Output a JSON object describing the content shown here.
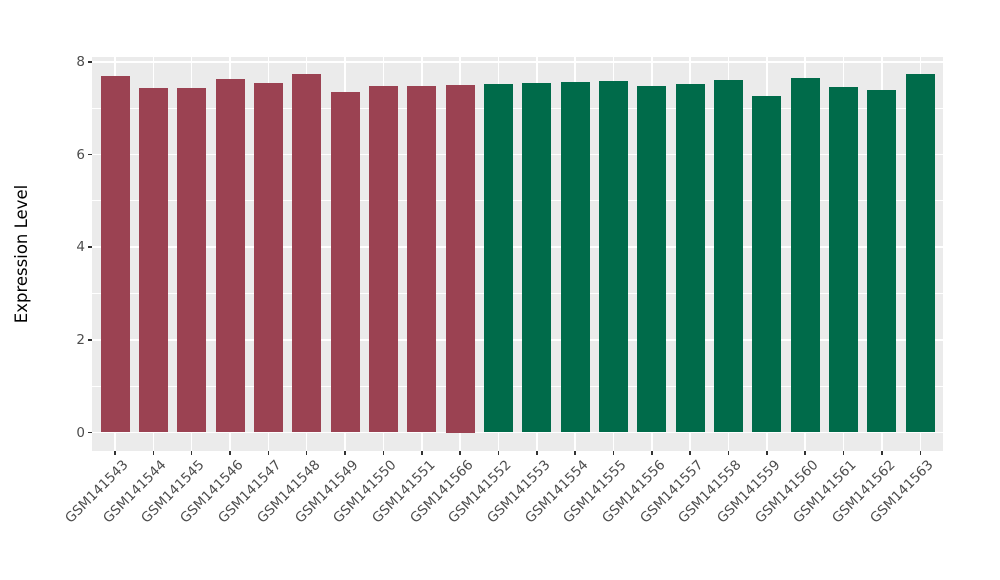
{
  "chart_data": {
    "type": "bar",
    "title": "",
    "xlabel": "",
    "ylabel": "Expression Level",
    "ylim": [
      0,
      8.1
    ],
    "yticks_major": [
      0,
      2,
      4,
      6,
      8
    ],
    "yticks_minor": [
      1,
      3,
      5,
      7
    ],
    "grid": true,
    "legend_position": "none",
    "panel_bg": "#EBEBEB",
    "grid_color": "#FFFFFF",
    "axis_text_color": "#4D4D4D",
    "group_colors": {
      "group1": "#9B4252",
      "group2": "#006B4A"
    },
    "categories": [
      "GSM141543",
      "GSM141544",
      "GSM141545",
      "GSM141546",
      "GSM141547",
      "GSM141548",
      "GSM141549",
      "GSM141550",
      "GSM141551",
      "GSM141566",
      "GSM141552",
      "GSM141553",
      "GSM141554",
      "GSM141555",
      "GSM141556",
      "GSM141557",
      "GSM141558",
      "GSM141559",
      "GSM141560",
      "GSM141561",
      "GSM141562",
      "GSM141563"
    ],
    "series": [
      {
        "name": "expression",
        "values": [
          7.69,
          7.44,
          7.44,
          7.63,
          7.55,
          7.73,
          7.34,
          7.47,
          7.47,
          7.5,
          7.53,
          7.54,
          7.57,
          7.58,
          7.49,
          7.52,
          7.61,
          7.26,
          7.66,
          7.46,
          7.4,
          7.73
        ],
        "groups": [
          "group1",
          "group1",
          "group1",
          "group1",
          "group1",
          "group1",
          "group1",
          "group1",
          "group1",
          "group1",
          "group2",
          "group2",
          "group2",
          "group2",
          "group2",
          "group2",
          "group2",
          "group2",
          "group2",
          "group2",
          "group2",
          "group2"
        ]
      }
    ]
  }
}
